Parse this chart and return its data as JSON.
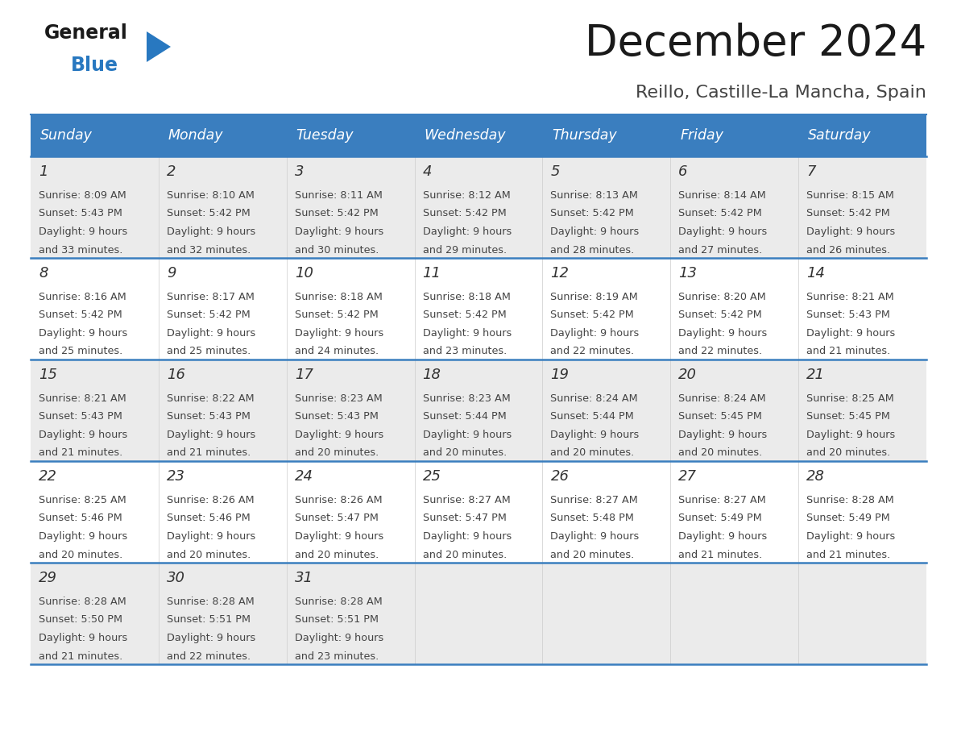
{
  "title": "December 2024",
  "subtitle": "Reillo, Castille-La Mancha, Spain",
  "days_of_week": [
    "Sunday",
    "Monday",
    "Tuesday",
    "Wednesday",
    "Thursday",
    "Friday",
    "Saturday"
  ],
  "header_bg": "#3a7ebf",
  "header_text": "#ffffff",
  "row_bg_even": "#ebebeb",
  "row_bg_odd": "#ffffff",
  "border_color": "#3a7ebf",
  "day_num_color": "#333333",
  "cell_text_color": "#444444",
  "title_color": "#1a1a1a",
  "subtitle_color": "#444444",
  "calendar_data": [
    [
      {
        "day": 1,
        "sunrise": "8:09 AM",
        "sunset": "5:43 PM",
        "daylight_h": "9 hours",
        "daylight_m": "33 minutes"
      },
      {
        "day": 2,
        "sunrise": "8:10 AM",
        "sunset": "5:42 PM",
        "daylight_h": "9 hours",
        "daylight_m": "32 minutes"
      },
      {
        "day": 3,
        "sunrise": "8:11 AM",
        "sunset": "5:42 PM",
        "daylight_h": "9 hours",
        "daylight_m": "30 minutes"
      },
      {
        "day": 4,
        "sunrise": "8:12 AM",
        "sunset": "5:42 PM",
        "daylight_h": "9 hours",
        "daylight_m": "29 minutes"
      },
      {
        "day": 5,
        "sunrise": "8:13 AM",
        "sunset": "5:42 PM",
        "daylight_h": "9 hours",
        "daylight_m": "28 minutes"
      },
      {
        "day": 6,
        "sunrise": "8:14 AM",
        "sunset": "5:42 PM",
        "daylight_h": "9 hours",
        "daylight_m": "27 minutes"
      },
      {
        "day": 7,
        "sunrise": "8:15 AM",
        "sunset": "5:42 PM",
        "daylight_h": "9 hours",
        "daylight_m": "26 minutes"
      }
    ],
    [
      {
        "day": 8,
        "sunrise": "8:16 AM",
        "sunset": "5:42 PM",
        "daylight_h": "9 hours",
        "daylight_m": "25 minutes"
      },
      {
        "day": 9,
        "sunrise": "8:17 AM",
        "sunset": "5:42 PM",
        "daylight_h": "9 hours",
        "daylight_m": "25 minutes"
      },
      {
        "day": 10,
        "sunrise": "8:18 AM",
        "sunset": "5:42 PM",
        "daylight_h": "9 hours",
        "daylight_m": "24 minutes"
      },
      {
        "day": 11,
        "sunrise": "8:18 AM",
        "sunset": "5:42 PM",
        "daylight_h": "9 hours",
        "daylight_m": "23 minutes"
      },
      {
        "day": 12,
        "sunrise": "8:19 AM",
        "sunset": "5:42 PM",
        "daylight_h": "9 hours",
        "daylight_m": "22 minutes"
      },
      {
        "day": 13,
        "sunrise": "8:20 AM",
        "sunset": "5:42 PM",
        "daylight_h": "9 hours",
        "daylight_m": "22 minutes"
      },
      {
        "day": 14,
        "sunrise": "8:21 AM",
        "sunset": "5:43 PM",
        "daylight_h": "9 hours",
        "daylight_m": "21 minutes"
      }
    ],
    [
      {
        "day": 15,
        "sunrise": "8:21 AM",
        "sunset": "5:43 PM",
        "daylight_h": "9 hours",
        "daylight_m": "21 minutes"
      },
      {
        "day": 16,
        "sunrise": "8:22 AM",
        "sunset": "5:43 PM",
        "daylight_h": "9 hours",
        "daylight_m": "21 minutes"
      },
      {
        "day": 17,
        "sunrise": "8:23 AM",
        "sunset": "5:43 PM",
        "daylight_h": "9 hours",
        "daylight_m": "20 minutes"
      },
      {
        "day": 18,
        "sunrise": "8:23 AM",
        "sunset": "5:44 PM",
        "daylight_h": "9 hours",
        "daylight_m": "20 minutes"
      },
      {
        "day": 19,
        "sunrise": "8:24 AM",
        "sunset": "5:44 PM",
        "daylight_h": "9 hours",
        "daylight_m": "20 minutes"
      },
      {
        "day": 20,
        "sunrise": "8:24 AM",
        "sunset": "5:45 PM",
        "daylight_h": "9 hours",
        "daylight_m": "20 minutes"
      },
      {
        "day": 21,
        "sunrise": "8:25 AM",
        "sunset": "5:45 PM",
        "daylight_h": "9 hours",
        "daylight_m": "20 minutes"
      }
    ],
    [
      {
        "day": 22,
        "sunrise": "8:25 AM",
        "sunset": "5:46 PM",
        "daylight_h": "9 hours",
        "daylight_m": "20 minutes"
      },
      {
        "day": 23,
        "sunrise": "8:26 AM",
        "sunset": "5:46 PM",
        "daylight_h": "9 hours",
        "daylight_m": "20 minutes"
      },
      {
        "day": 24,
        "sunrise": "8:26 AM",
        "sunset": "5:47 PM",
        "daylight_h": "9 hours",
        "daylight_m": "20 minutes"
      },
      {
        "day": 25,
        "sunrise": "8:27 AM",
        "sunset": "5:47 PM",
        "daylight_h": "9 hours",
        "daylight_m": "20 minutes"
      },
      {
        "day": 26,
        "sunrise": "8:27 AM",
        "sunset": "5:48 PM",
        "daylight_h": "9 hours",
        "daylight_m": "20 minutes"
      },
      {
        "day": 27,
        "sunrise": "8:27 AM",
        "sunset": "5:49 PM",
        "daylight_h": "9 hours",
        "daylight_m": "21 minutes"
      },
      {
        "day": 28,
        "sunrise": "8:28 AM",
        "sunset": "5:49 PM",
        "daylight_h": "9 hours",
        "daylight_m": "21 minutes"
      }
    ],
    [
      {
        "day": 29,
        "sunrise": "8:28 AM",
        "sunset": "5:50 PM",
        "daylight_h": "9 hours",
        "daylight_m": "21 minutes"
      },
      {
        "day": 30,
        "sunrise": "8:28 AM",
        "sunset": "5:51 PM",
        "daylight_h": "9 hours",
        "daylight_m": "22 minutes"
      },
      {
        "day": 31,
        "sunrise": "8:28 AM",
        "sunset": "5:51 PM",
        "daylight_h": "9 hours",
        "daylight_m": "23 minutes"
      },
      null,
      null,
      null,
      null
    ]
  ],
  "logo_general_color": "#1a1a1a",
  "logo_blue_color": "#2878c0",
  "logo_triangle_color": "#2878c0"
}
